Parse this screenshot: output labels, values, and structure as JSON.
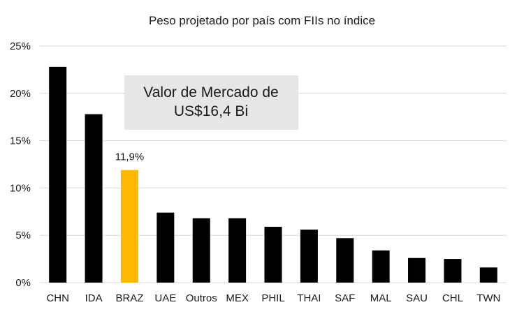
{
  "chart_data": {
    "type": "bar",
    "title": "Peso projetado por país com FIIs no índice",
    "categories": [
      "CHN",
      "IDA",
      "BRAZ",
      "UAE",
      "Outros",
      "MEX",
      "PHIL",
      "THAI",
      "SAF",
      "MAL",
      "SAU",
      "CHL",
      "TWN"
    ],
    "values": [
      22.8,
      17.8,
      11.9,
      7.4,
      6.8,
      6.8,
      5.9,
      5.6,
      4.7,
      3.4,
      2.6,
      2.5,
      1.6
    ],
    "value_format": "percent",
    "ylim": [
      0,
      25
    ],
    "yticks": [
      0,
      5,
      10,
      15,
      20,
      25
    ],
    "ytick_labels": [
      "0%",
      "5%",
      "10%",
      "15%",
      "20%",
      "25%"
    ],
    "xlabel": "",
    "ylabel": "",
    "grid": true,
    "highlight": {
      "category": "BRAZ",
      "label": "11,9%"
    },
    "annotation": {
      "line1": "Valor de Mercado de",
      "line2": "US$16,4 Bi"
    },
    "colors": {
      "bar": "#000000",
      "highlight_bar": "#FFB900",
      "grid": "#d9d9d9",
      "annotation_box": "#e6e6e6"
    }
  }
}
